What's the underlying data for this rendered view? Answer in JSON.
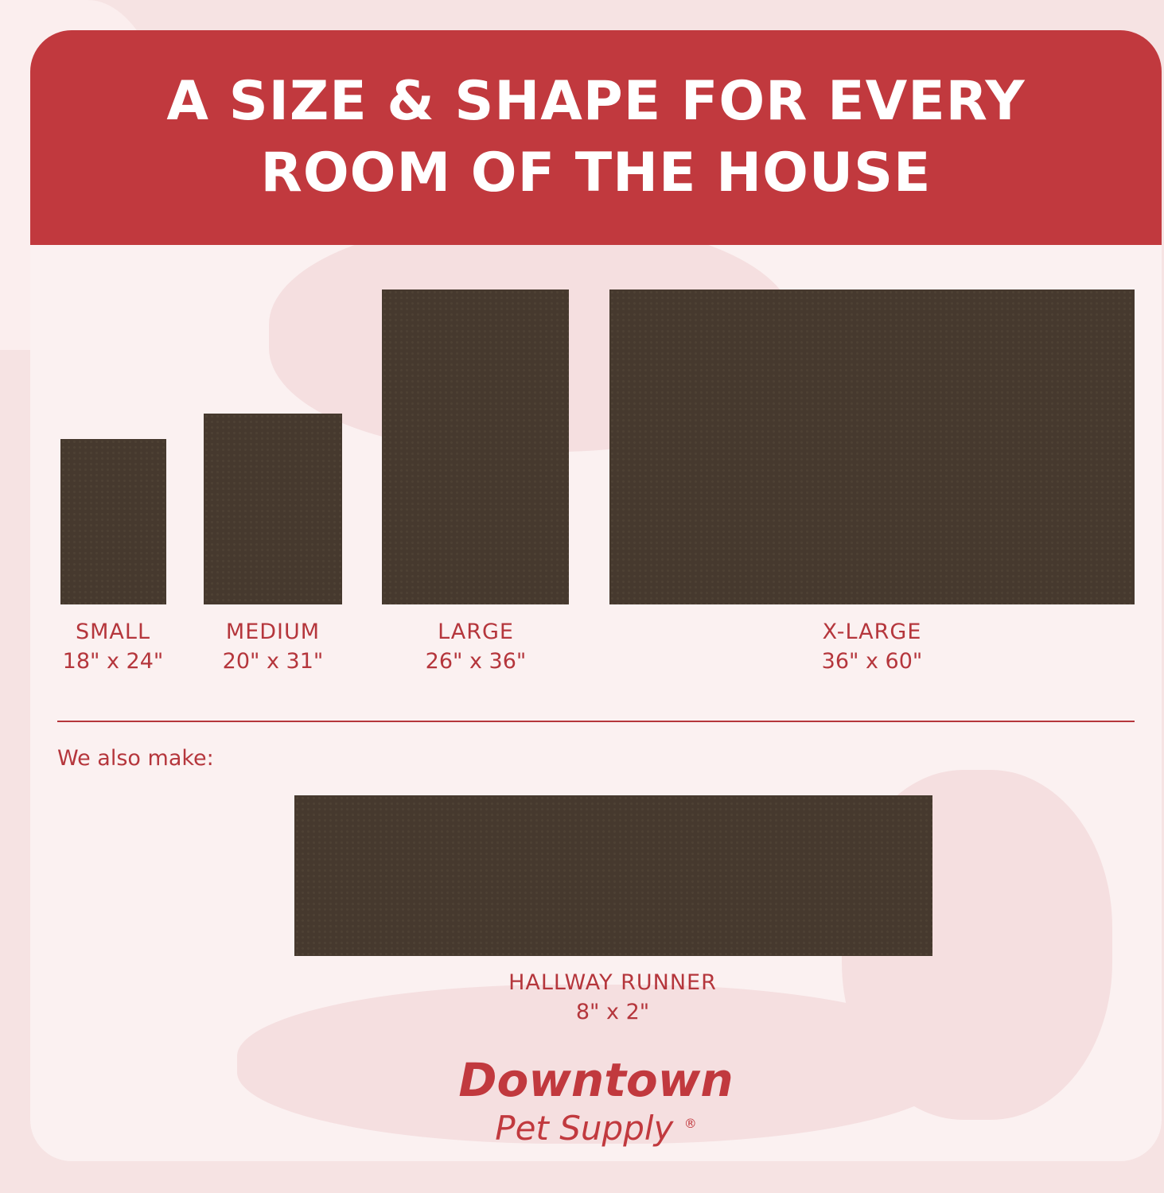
{
  "header": {
    "line1": "A SIZE & SHAPE FOR EVERY",
    "line2": "ROOM OF THE HOUSE"
  },
  "sizes": [
    {
      "name": "SMALL",
      "dims": "18\" x 24\""
    },
    {
      "name": "MEDIUM",
      "dims": "20\" x 31\""
    },
    {
      "name": "LARGE",
      "dims": "26\" x 36\""
    },
    {
      "name": "X-LARGE",
      "dims": "36\" x 60\""
    }
  ],
  "also": {
    "label": "We also make:",
    "name": "HALLWAY RUNNER",
    "dims": "8\" x 2\""
  },
  "logo": {
    "line1": "Downtown",
    "line2": "Pet Supply",
    "mark": "®"
  },
  "colors": {
    "brand_red": "#c1393e",
    "mat_brown": "#46392e",
    "background": "#fbf1f1"
  }
}
